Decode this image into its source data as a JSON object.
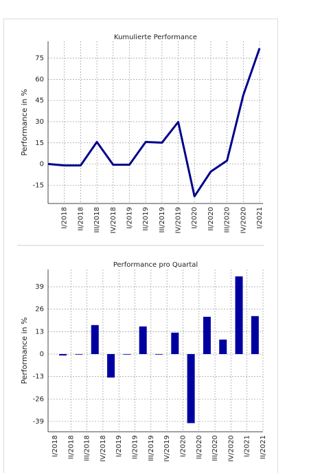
{
  "chart_data": [
    {
      "type": "line",
      "title": "Kumulierte Performance",
      "y_label": "Performance in %",
      "categories": [
        null,
        "I/2018",
        "II/2018",
        "III/2018",
        "IV/2018",
        "I/2019",
        "II/2019",
        "III/2019",
        "IV/2019",
        "I/2020",
        "II/2020",
        "III/2020",
        "IV/2020",
        "I/2021"
      ],
      "series": [
        {
          "name": "Kumulierte Performance",
          "color": "#00008b",
          "values": [
            0,
            -1,
            -1,
            15.6,
            -0.5,
            -0.5,
            15.6,
            15.1,
            29.8,
            -22.9,
            -5.4,
            2.4,
            48.8,
            82
          ]
        }
      ],
      "ylim": [
        -28,
        87
      ],
      "yticks": [
        -15,
        0,
        15,
        30,
        45,
        60,
        75
      ],
      "grid": true
    },
    {
      "type": "bar",
      "title": "Performance pro Quartal",
      "y_label": "Performance in %",
      "categories": [
        "I/2018",
        "II/2018",
        "III/2018",
        "IV/2018",
        "I/2019",
        "II/2019",
        "III/2019",
        "IV/2019",
        "I/2020",
        "II/2020",
        "III/2020",
        "IV/2020",
        "I/2021",
        "II/2021"
      ],
      "series": [
        {
          "name": "Performance pro Quartal",
          "color": "#0000a0",
          "values": [
            -0.8,
            -0.2,
            16.8,
            -13.6,
            0,
            16,
            -0.3,
            12.4,
            -40,
            21.6,
            8.4,
            45,
            22,
            null
          ]
        }
      ],
      "ylim": [
        -45,
        49
      ],
      "yticks": [
        -39,
        -26,
        -13,
        0,
        13,
        26,
        39
      ],
      "grid": true
    }
  ]
}
